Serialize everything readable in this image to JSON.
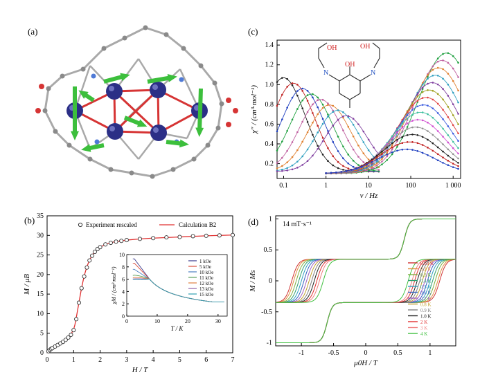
{
  "panels": {
    "a": {
      "label": "(a)"
    },
    "b": {
      "label": "(b)"
    },
    "c": {
      "label": "(c)"
    },
    "d": {
      "label": "(d)"
    }
  },
  "colors": {
    "atom_metal": "#2b2f86",
    "bond_red": "#d63434",
    "bond_gray": "#a9a9a9",
    "arrow_green": "#3cbf3c",
    "nitrogen_blue": "#4f7ad6",
    "fit_red": "#e03030"
  },
  "chart_data": [
    {
      "panel": "b",
      "type": "scatter",
      "xlabel": "H / T",
      "ylabel": "M / μB",
      "xlim": [
        0,
        7
      ],
      "ylim": [
        0,
        35
      ],
      "xticks": [
        "0",
        "1",
        "2",
        "3",
        "4",
        "5",
        "6",
        "7"
      ],
      "yticks": [
        "0",
        "5",
        "10",
        "15",
        "20",
        "25",
        "30",
        "35"
      ],
      "legend": [
        "Experiment rescaled",
        "Calculation B2"
      ],
      "series": [
        {
          "name": "Experiment rescaled",
          "style": "open-circle",
          "x": [
            0.05,
            0.1,
            0.15,
            0.2,
            0.3,
            0.4,
            0.5,
            0.6,
            0.7,
            0.8,
            0.9,
            1.0,
            1.1,
            1.2,
            1.3,
            1.4,
            1.5,
            1.6,
            1.7,
            1.8,
            1.9,
            2.0,
            2.2,
            2.4,
            2.6,
            2.8,
            3.0,
            3.5,
            4.0,
            4.5,
            5.0,
            5.5,
            6.0,
            6.5,
            7.0
          ],
          "y": [
            0.4,
            0.7,
            1.0,
            1.2,
            1.6,
            2.0,
            2.4,
            2.8,
            3.3,
            3.9,
            4.6,
            5.8,
            8.6,
            12.8,
            16.5,
            19.5,
            21.8,
            23.6,
            24.8,
            25.8,
            26.5,
            27.0,
            27.7,
            28.1,
            28.4,
            28.6,
            28.8,
            29.1,
            29.3,
            29.5,
            29.6,
            29.8,
            29.9,
            30.0,
            30.1
          ]
        },
        {
          "name": "Calculation B2",
          "style": "line",
          "color": "#e03030",
          "x": [
            0,
            0.2,
            0.4,
            0.6,
            0.8,
            0.9,
            1.0,
            1.05,
            1.1,
            1.2,
            1.3,
            1.4,
            1.5,
            1.6,
            1.7,
            1.8,
            2.0,
            2.2,
            2.5,
            3.0,
            3.5,
            4.0,
            5.0,
            6.0,
            7.0
          ],
          "y": [
            0,
            1.2,
            2.1,
            2.9,
            3.9,
            4.7,
            6.0,
            7.2,
            9.0,
            12.8,
            16.6,
            19.7,
            22.0,
            23.7,
            24.9,
            25.8,
            27.0,
            27.7,
            28.3,
            28.8,
            29.1,
            29.3,
            29.6,
            29.9,
            30.1
          ]
        }
      ],
      "inset": {
        "type": "line",
        "xlabel": "T / K",
        "ylabel": "χM / (cm³·mol⁻¹)",
        "xlim": [
          0,
          33
        ],
        "ylim": [
          0,
          10
        ],
        "xticks": [
          "0",
          "10",
          "20",
          "30"
        ],
        "yticks": [
          "0",
          "2",
          "4",
          "6",
          "8",
          "10"
        ],
        "legend_placement": "top-right",
        "series": [
          {
            "name": "1 kOe",
            "color": "#3a3a8c",
            "peak": 9.3
          },
          {
            "name": "5 kOe",
            "color": "#d84c3c",
            "peak": 8.6
          },
          {
            "name": "10 kOe",
            "color": "#4c7fc0",
            "peak": 7.6
          },
          {
            "name": "11 kOe",
            "color": "#5ca05c",
            "peak": 7.1
          },
          {
            "name": "12 kOe",
            "color": "#e08040",
            "peak": 6.6
          },
          {
            "name": "13 kOe",
            "color": "#9060a8",
            "peak": 6.2
          },
          {
            "name": "15 kOe",
            "color": "#30a0b0",
            "peak": 5.8
          }
        ]
      }
    },
    {
      "panel": "c",
      "type": "line",
      "xlabel": "ν / Hz",
      "ylabel": "χ″ / (cm³·mol⁻¹)",
      "xscale": "log",
      "xlim": [
        0.07,
        1500
      ],
      "ylim": [
        0.05,
        1.45
      ],
      "xticks": [
        "0.1",
        "1",
        "10",
        "100",
        "1 000"
      ],
      "yticks": [
        "0.2",
        "0.4",
        "0.6",
        "0.8",
        "1.0",
        "1.2",
        "1.4"
      ],
      "low_freq_peaks_hz": [
        0.1,
        0.17,
        0.28,
        0.45,
        0.75,
        1.2,
        1.9,
        3.0
      ],
      "high_freq_peaks_hz": [
        700,
        550,
        450,
        380,
        320,
        270,
        230,
        200,
        170,
        150,
        130,
        110,
        95,
        80
      ]
    },
    {
      "panel": "d",
      "type": "line",
      "annotation": "14 mT·s⁻¹",
      "xlabel": "μ0H / T",
      "ylabel": "M / Ms",
      "xlim": [
        -1.4,
        1.4
      ],
      "ylim": [
        -1.05,
        1.05
      ],
      "xticks": [
        "-1",
        "-0.5",
        "0",
        "0.5",
        "1"
      ],
      "yticks": [
        "-1",
        "-0.5",
        "0",
        "0.5",
        "1"
      ],
      "legend_placement": "bottom-right",
      "series": [
        {
          "name": "0.03 K",
          "color": "#d03030",
          "coercive": 1.15
        },
        {
          "name": "0.2 K",
          "color": "#e09040",
          "coercive": 1.12
        },
        {
          "name": "0.3 K",
          "color": "#80b040",
          "coercive": 1.08
        },
        {
          "name": "0.4 K",
          "color": "#30a070",
          "coercive": 1.04
        },
        {
          "name": "0.5 K",
          "color": "#30a0c0",
          "coercive": 1.0
        },
        {
          "name": "0.6 K",
          "color": "#3060c0",
          "coercive": 0.96
        },
        {
          "name": "0.7 K",
          "color": "#a060c0",
          "coercive": 0.92
        },
        {
          "name": "0.8 K",
          "color": "#c0a030",
          "coercive": 0.88
        },
        {
          "name": "0.9 K",
          "color": "#808080",
          "coercive": 0.84
        },
        {
          "name": "1.0 K",
          "color": "#202020",
          "coercive": 0.8
        },
        {
          "name": "2 K",
          "color": "#e03030",
          "coercive": 0.76
        },
        {
          "name": "3 K",
          "color": "#f08080",
          "coercive": 0.72
        },
        {
          "name": "4 K",
          "color": "#40c040",
          "coercive": 0.66
        }
      ]
    }
  ]
}
